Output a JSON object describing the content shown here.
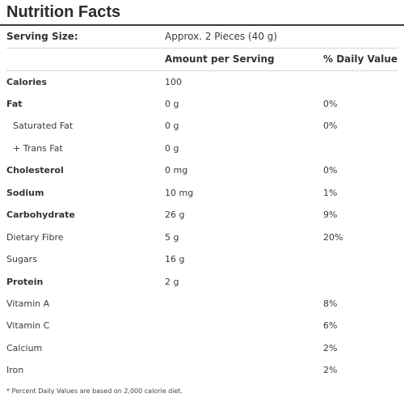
{
  "title": "Nutrition Facts",
  "serving": {
    "label": "Serving Size:",
    "value": "Approx. 2 Pieces (40 g)"
  },
  "headers": {
    "amount": "Amount per Serving",
    "daily": "% Daily Value"
  },
  "rows": [
    {
      "name": "Calories",
      "amount": "100",
      "daily": ""
    },
    {
      "name": "Fat",
      "amount": "0 g",
      "daily": "0%"
    },
    {
      "name": "Saturated Fat",
      "amount": "0 g",
      "daily": "0%"
    },
    {
      "name": "+ Trans Fat",
      "amount": "0 g",
      "daily": ""
    },
    {
      "name": "Cholesterol",
      "amount": "0 mg",
      "daily": "0%"
    },
    {
      "name": "Sodium",
      "amount": "10 mg",
      "daily": "1%"
    },
    {
      "name": "Carbohydrate",
      "amount": "26 g",
      "daily": "9%"
    },
    {
      "name": "Dietary Fibre",
      "amount": "5 g",
      "daily": "20%"
    },
    {
      "name": "Sugars",
      "amount": "16 g",
      "daily": ""
    },
    {
      "name": "Protein",
      "amount": "2 g",
      "daily": ""
    },
    {
      "name": "Vitamin A",
      "amount": "",
      "daily": "8%"
    },
    {
      "name": "Vitamin C",
      "amount": "",
      "daily": "6%"
    },
    {
      "name": "Calcium",
      "amount": "",
      "daily": "2%"
    },
    {
      "name": "Iron",
      "amount": "",
      "daily": "2%"
    }
  ],
  "footnote": "* Percent Daily Values are based on 2,000 calorie diet."
}
